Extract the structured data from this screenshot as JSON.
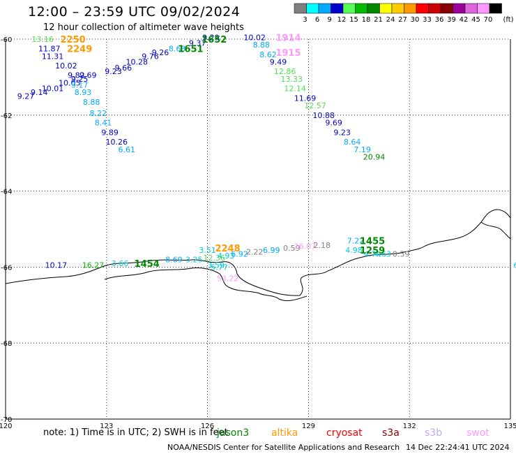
{
  "header": {
    "title": "12:00 – 23:59 UTC 09/02/2024",
    "subtitle": "12 hour collection of altimeter wave heights"
  },
  "scale": {
    "unit": "(ft)",
    "bins": [
      {
        "label": "3",
        "color": "#7f7f7f"
      },
      {
        "label": "6",
        "color": "#00ffff"
      },
      {
        "label": "9",
        "color": "#00aaff"
      },
      {
        "label": "12",
        "color": "#0000cc"
      },
      {
        "label": "15",
        "color": "#55ff55"
      },
      {
        "label": "18",
        "color": "#00bb00"
      },
      {
        "label": "21",
        "color": "#008800"
      },
      {
        "label": "24",
        "color": "#ffff00"
      },
      {
        "label": "27",
        "color": "#ffcc00"
      },
      {
        "label": "30",
        "color": "#ff9900"
      },
      {
        "label": "33",
        "color": "#ff0000"
      },
      {
        "label": "36",
        "color": "#cc0000"
      },
      {
        "label": "39",
        "color": "#880000"
      },
      {
        "label": "42",
        "color": "#990099"
      },
      {
        "label": "45",
        "color": "#dd66dd"
      },
      {
        "label": "70",
        "color": "#ff99ff"
      },
      {
        "label": "",
        "color": "#000000"
      }
    ]
  },
  "chart_data": {
    "type": "scatter",
    "xlim": [
      120,
      135
    ],
    "ylim": [
      -70,
      -60
    ],
    "x_ticks": [
      "120",
      "123",
      "126",
      "129",
      "132",
      "135"
    ],
    "y_ticks": [
      "-60",
      "-62",
      "-64",
      "-66",
      "-68",
      "-70"
    ],
    "grid": true,
    "points": [
      {
        "x": 121.1,
        "y": -60.0,
        "label": "13.16",
        "color": "#55dd55"
      },
      {
        "x": 121.3,
        "y": -60.25,
        "label": "11.87",
        "color": "#0000cc"
      },
      {
        "x": 121.4,
        "y": -60.45,
        "label": "11.31",
        "color": "#0000cc"
      },
      {
        "x": 121.8,
        "y": -60.7,
        "label": "10.02",
        "color": "#0000cc"
      },
      {
        "x": 122.1,
        "y": -60.95,
        "label": "9.82",
        "color": "#0000cc"
      },
      {
        "x": 122.45,
        "y": -60.95,
        "label": "9.69",
        "color": "#0000cc"
      },
      {
        "x": 122.2,
        "y": -61.05,
        "label": "9.25",
        "color": "#0000cc"
      },
      {
        "x": 121.9,
        "y": -61.15,
        "label": "10.05",
        "color": "#0000cc"
      },
      {
        "x": 122.2,
        "y": -61.2,
        "label": "9.17",
        "color": "#00aaff"
      },
      {
        "x": 121.4,
        "y": -61.3,
        "label": "10.01",
        "color": "#0000cc"
      },
      {
        "x": 121.0,
        "y": -61.4,
        "label": "9.14",
        "color": "#0000cc"
      },
      {
        "x": 120.6,
        "y": -61.5,
        "label": "9.27",
        "color": "#0000cc"
      },
      {
        "x": 122.3,
        "y": -61.4,
        "label": "8.93",
        "color": "#00aaff"
      },
      {
        "x": 122.55,
        "y": -61.65,
        "label": "8.88",
        "color": "#00aaff"
      },
      {
        "x": 122.75,
        "y": -61.95,
        "label": "8.22",
        "color": "#00aaff"
      },
      {
        "x": 122.9,
        "y": -62.2,
        "label": "8.41",
        "color": "#00aaff"
      },
      {
        "x": 123.1,
        "y": -62.45,
        "label": "9.89",
        "color": "#0000cc"
      },
      {
        "x": 123.3,
        "y": -62.7,
        "label": "10.26",
        "color": "#0000cc"
      },
      {
        "x": 123.6,
        "y": -62.9,
        "label": "6.61",
        "color": "#00aaff"
      },
      {
        "x": 123.2,
        "y": -60.85,
        "label": "9.23",
        "color": "#0000cc"
      },
      {
        "x": 123.5,
        "y": -60.75,
        "label": "9.66",
        "color": "#0000cc"
      },
      {
        "x": 123.9,
        "y": -60.6,
        "label": "10.28",
        "color": "#0000cc"
      },
      {
        "x": 124.3,
        "y": -60.45,
        "label": "9.76",
        "color": "#0000cc"
      },
      {
        "x": 124.6,
        "y": -60.35,
        "label": "9.26",
        "color": "#0000cc"
      },
      {
        "x": 125.1,
        "y": -60.25,
        "label": "8.63",
        "color": "#00aaff"
      },
      {
        "x": 125.7,
        "y": -60.1,
        "label": "9.37",
        "color": "#0000cc"
      },
      {
        "x": 126.1,
        "y": -59.95,
        "label": "9.29",
        "color": "#0000cc"
      },
      {
        "x": 127.4,
        "y": -59.95,
        "label": "10.02",
        "color": "#0000cc"
      },
      {
        "x": 127.6,
        "y": -60.15,
        "label": "8.88",
        "color": "#00aaff"
      },
      {
        "x": 127.8,
        "y": -60.4,
        "label": "8.62",
        "color": "#00aaff"
      },
      {
        "x": 128.1,
        "y": -60.6,
        "label": "9.49",
        "color": "#0000cc"
      },
      {
        "x": 128.3,
        "y": -60.85,
        "label": "12.86",
        "color": "#55dd55"
      },
      {
        "x": 128.5,
        "y": -61.05,
        "label": "13.33",
        "color": "#55dd55"
      },
      {
        "x": 128.6,
        "y": -61.3,
        "label": "12.14",
        "color": "#55dd55"
      },
      {
        "x": 128.9,
        "y": -61.55,
        "label": "11.69",
        "color": "#0000cc"
      },
      {
        "x": 129.2,
        "y": -61.75,
        "label": "12.57",
        "color": "#55dd55"
      },
      {
        "x": 129.45,
        "y": -62.0,
        "label": "10.88",
        "color": "#0000cc"
      },
      {
        "x": 129.75,
        "y": -62.2,
        "label": "9.69",
        "color": "#0000cc"
      },
      {
        "x": 130.0,
        "y": -62.45,
        "label": "9.23",
        "color": "#0000cc"
      },
      {
        "x": 130.3,
        "y": -62.7,
        "label": "8.64",
        "color": "#00aaff"
      },
      {
        "x": 130.6,
        "y": -62.9,
        "label": "7.19",
        "color": "#00aaff"
      },
      {
        "x": 130.95,
        "y": -63.1,
        "label": "20.94",
        "color": "#008800"
      },
      {
        "x": 121.5,
        "y": -65.95,
        "label": "10.17",
        "color": "#0000cc"
      },
      {
        "x": 122.6,
        "y": -65.95,
        "label": "16.27",
        "color": "#00bb00"
      },
      {
        "x": 123.4,
        "y": -65.9,
        "label": "3.66",
        "color": "#00ccdd"
      },
      {
        "x": 125.0,
        "y": -65.8,
        "label": "8.69",
        "color": "#00aaff"
      },
      {
        "x": 125.6,
        "y": -65.8,
        "label": "3.25",
        "color": "#00ccdd"
      },
      {
        "x": 126.2,
        "y": -65.75,
        "label": "12.36",
        "color": "#55dd55"
      },
      {
        "x": 126.55,
        "y": -65.7,
        "label": "4.93",
        "color": "#00ccdd"
      },
      {
        "x": 126.95,
        "y": -65.65,
        "label": "6.92",
        "color": "#00aaff"
      },
      {
        "x": 127.4,
        "y": -65.6,
        "label": "2.22",
        "color": "#7f7f7f"
      },
      {
        "x": 127.9,
        "y": -65.55,
        "label": "6.99",
        "color": "#00aaff"
      },
      {
        "x": 128.5,
        "y": -65.5,
        "label": "0.59",
        "color": "#7f7f7f"
      },
      {
        "x": 128.9,
        "y": -65.45,
        "label": "16.07",
        "color": "#ff99ff"
      },
      {
        "x": 129.4,
        "y": -65.42,
        "label": "2.18",
        "color": "#7f7f7f"
      },
      {
        "x": 126.0,
        "y": -65.55,
        "label": "3.51",
        "color": "#00ccdd"
      },
      {
        "x": 126.25,
        "y": -65.95,
        "label": "3.59",
        "color": "#00ccdd"
      },
      {
        "x": 126.35,
        "y": -66.0,
        "label": "5.77",
        "color": "#00ccdd"
      },
      {
        "x": 126.6,
        "y": -66.3,
        "label": "53.22",
        "color": "#ff99ff"
      },
      {
        "x": 130.4,
        "y": -65.3,
        "label": "7.22",
        "color": "#00aaff"
      },
      {
        "x": 130.35,
        "y": -65.55,
        "label": "4.98",
        "color": "#00ccdd"
      },
      {
        "x": 130.9,
        "y": -65.65,
        "label": "4.74",
        "color": "#00ccdd"
      },
      {
        "x": 131.2,
        "y": -65.65,
        "label": "4.63",
        "color": "#00ccdd"
      },
      {
        "x": 131.75,
        "y": -65.65,
        "label": "0.59",
        "color": "#7f7f7f"
      },
      {
        "x": 135.2,
        "y": -65.95,
        "label": "6.",
        "color": "#00ccdd"
      }
    ],
    "time_labels": [
      {
        "x": 122.0,
        "y": -60.0,
        "label": "2250",
        "color": "#ff9900"
      },
      {
        "x": 122.2,
        "y": -60.25,
        "label": "2249",
        "color": "#ff9900"
      },
      {
        "x": 126.2,
        "y": -60.0,
        "label": "1652",
        "color": "#008800"
      },
      {
        "x": 125.5,
        "y": -60.25,
        "label": "1651",
        "color": "#008800"
      },
      {
        "x": 128.4,
        "y": -59.95,
        "label": "1914",
        "color": "#ff99ff"
      },
      {
        "x": 128.4,
        "y": -60.35,
        "label": "1915",
        "color": "#ff99ff"
      },
      {
        "x": 126.6,
        "y": -65.5,
        "label": "2248",
        "color": "#ff9900"
      },
      {
        "x": 124.2,
        "y": -65.9,
        "label": "1454",
        "color": "#008800"
      },
      {
        "x": 130.9,
        "y": -65.3,
        "label": "1455",
        "color": "#008800"
      },
      {
        "x": 130.9,
        "y": -65.55,
        "label": "1259",
        "color": "#008800"
      }
    ]
  },
  "note": {
    "prefix": "note: 1) Time is in UTC; 2) SWH is in feet",
    "satellites": [
      {
        "name": "jason3",
        "color": "#008800"
      },
      {
        "name": "altika",
        "color": "#ff9900"
      },
      {
        "name": "cryosat",
        "color": "#ff0000"
      },
      {
        "name": "s3a",
        "color": "#880000"
      },
      {
        "name": "s3b",
        "color": "#bbaaee"
      },
      {
        "name": "swot",
        "color": "#ff99ff"
      }
    ]
  },
  "footer": {
    "credit": "NOAA/NESDIS Center for Satellite Applications and Research",
    "timestamp": "14 Dec 22:24:41 UTC 2024"
  }
}
